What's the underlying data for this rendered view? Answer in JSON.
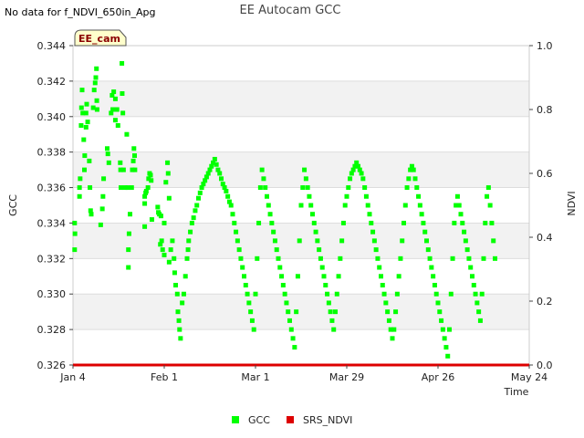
{
  "chart_data": {
    "type": "scatter",
    "title": "EE Autocam GCC",
    "note": "No data for f_NDVI_650in_Apg",
    "site_label": "EE_cam",
    "xlabel": "Time",
    "ylabel": "GCC",
    "y2label": "NDVI",
    "x_range_days": [
      0,
      140
    ],
    "x_ticks": [
      {
        "label": "Jan 4",
        "day": 0
      },
      {
        "label": "Feb 1",
        "day": 28
      },
      {
        "label": "Mar 1",
        "day": 56
      },
      {
        "label": "Mar 29",
        "day": 84
      },
      {
        "label": "Apr 26",
        "day": 112
      },
      {
        "label": "May 24",
        "day": 140
      }
    ],
    "ylim": [
      0.326,
      0.344
    ],
    "y_ticks": [
      "0.326",
      "0.328",
      "0.330",
      "0.332",
      "0.334",
      "0.336",
      "0.338",
      "0.340",
      "0.342",
      "0.344"
    ],
    "y2lim": [
      0.0,
      1.0
    ],
    "y2_ticks": [
      "0.0",
      "0.2",
      "0.4",
      "0.6",
      "0.8",
      "1.0"
    ],
    "grid": true,
    "legend": [
      {
        "name": "GCC",
        "color": "#00ff00"
      },
      {
        "name": "SRS_NDVI",
        "color": "#dd0000"
      }
    ],
    "series": [
      {
        "name": "GCC",
        "color": "#00ff00",
        "points": [
          [
            0.5,
            0.3325
          ],
          [
            0.5,
            0.334
          ],
          [
            0.6,
            0.3334
          ],
          [
            2.0,
            0.3355
          ],
          [
            2.0,
            0.336
          ],
          [
            2.2,
            0.3365
          ],
          [
            2.5,
            0.3395
          ],
          [
            2.6,
            0.3405
          ],
          [
            2.8,
            0.3415
          ],
          [
            3.0,
            0.3402
          ],
          [
            3.3,
            0.3387
          ],
          [
            3.5,
            0.337
          ],
          [
            3.6,
            0.3378
          ],
          [
            4.0,
            0.3394
          ],
          [
            4.0,
            0.3402
          ],
          [
            4.2,
            0.3407
          ],
          [
            4.5,
            0.3397
          ],
          [
            5.0,
            0.3375
          ],
          [
            5.2,
            0.336
          ],
          [
            5.4,
            0.3347
          ],
          [
            5.6,
            0.3345
          ],
          [
            6.2,
            0.3405
          ],
          [
            6.5,
            0.3415
          ],
          [
            6.8,
            0.3419
          ],
          [
            7.0,
            0.3422
          ],
          [
            7.2,
            0.3427
          ],
          [
            7.3,
            0.3409
          ],
          [
            7.4,
            0.3404
          ],
          [
            8.5,
            0.3339
          ],
          [
            9.0,
            0.3348
          ],
          [
            9.2,
            0.3355
          ],
          [
            9.4,
            0.3365
          ],
          [
            10.5,
            0.3382
          ],
          [
            10.7,
            0.3379
          ],
          [
            11.0,
            0.3374
          ],
          [
            11.7,
            0.3402
          ],
          [
            12.0,
            0.3412
          ],
          [
            12.2,
            0.3404
          ],
          [
            12.5,
            0.3414
          ],
          [
            13.0,
            0.341
          ],
          [
            13.0,
            0.3398
          ],
          [
            13.5,
            0.3404
          ],
          [
            13.8,
            0.3395
          ],
          [
            14.5,
            0.3374
          ],
          [
            14.6,
            0.337
          ],
          [
            14.7,
            0.336
          ],
          [
            15.0,
            0.343
          ],
          [
            15.1,
            0.3413
          ],
          [
            15.3,
            0.3402
          ],
          [
            15.5,
            0.337
          ],
          [
            16.0,
            0.336
          ],
          [
            16.5,
            0.339
          ],
          [
            16.8,
            0.336
          ],
          [
            17.0,
            0.3325
          ],
          [
            17.0,
            0.3315
          ],
          [
            17.2,
            0.3334
          ],
          [
            17.5,
            0.3345
          ],
          [
            18.0,
            0.336
          ],
          [
            18.2,
            0.337
          ],
          [
            18.5,
            0.3375
          ],
          [
            18.7,
            0.3382
          ],
          [
            18.9,
            0.3378
          ],
          [
            19.0,
            0.337
          ],
          [
            22.0,
            0.3338
          ],
          [
            22.0,
            0.3351
          ],
          [
            22.0,
            0.3355
          ],
          [
            22.3,
            0.3357
          ],
          [
            22.5,
            0.3358
          ],
          [
            23.0,
            0.336
          ],
          [
            23.2,
            0.3365
          ],
          [
            23.5,
            0.3368
          ],
          [
            23.8,
            0.3367
          ],
          [
            24.0,
            0.3364
          ],
          [
            24.2,
            0.3342
          ],
          [
            26.0,
            0.3349
          ],
          [
            26.2,
            0.3346
          ],
          [
            26.5,
            0.3345
          ],
          [
            27.0,
            0.3344
          ],
          [
            28.0,
            0.334
          ],
          [
            28.5,
            0.3363
          ],
          [
            29.0,
            0.3374
          ],
          [
            29.2,
            0.3368
          ],
          [
            29.5,
            0.3354
          ],
          [
            26.8,
            0.3328
          ],
          [
            27.2,
            0.333
          ],
          [
            27.5,
            0.3325
          ],
          [
            28.0,
            0.3322
          ],
          [
            29.5,
            0.3318
          ],
          [
            30.0,
            0.3325
          ],
          [
            30.5,
            0.333
          ],
          [
            31.0,
            0.332
          ],
          [
            31.2,
            0.3312
          ],
          [
            31.5,
            0.3305
          ],
          [
            32.0,
            0.33
          ],
          [
            32.2,
            0.329
          ],
          [
            32.5,
            0.3285
          ],
          [
            32.7,
            0.328
          ],
          [
            33.0,
            0.3275
          ],
          [
            33.5,
            0.3295
          ],
          [
            34.0,
            0.33
          ],
          [
            34.5,
            0.331
          ],
          [
            35.0,
            0.332
          ],
          [
            35.3,
            0.3325
          ],
          [
            35.5,
            0.333
          ],
          [
            36.0,
            0.3335
          ],
          [
            36.5,
            0.334
          ],
          [
            37.0,
            0.3343
          ],
          [
            37.5,
            0.3347
          ],
          [
            38.0,
            0.335
          ],
          [
            38.5,
            0.3354
          ],
          [
            39.0,
            0.3357
          ],
          [
            39.5,
            0.336
          ],
          [
            40.0,
            0.3362
          ],
          [
            40.5,
            0.3364
          ],
          [
            41.0,
            0.3366
          ],
          [
            41.5,
            0.3368
          ],
          [
            42.0,
            0.337
          ],
          [
            42.5,
            0.3372
          ],
          [
            43.0,
            0.3374
          ],
          [
            43.5,
            0.3376
          ],
          [
            44.0,
            0.3373
          ],
          [
            44.5,
            0.337
          ],
          [
            45.0,
            0.3368
          ],
          [
            45.5,
            0.3365
          ],
          [
            46.0,
            0.3362
          ],
          [
            46.5,
            0.336
          ],
          [
            47.0,
            0.3358
          ],
          [
            47.5,
            0.3355
          ],
          [
            48.0,
            0.3352
          ],
          [
            48.5,
            0.335
          ],
          [
            49.0,
            0.3345
          ],
          [
            49.5,
            0.334
          ],
          [
            50.0,
            0.3335
          ],
          [
            50.5,
            0.333
          ],
          [
            51.0,
            0.3325
          ],
          [
            51.5,
            0.332
          ],
          [
            52.0,
            0.3315
          ],
          [
            52.5,
            0.331
          ],
          [
            53.0,
            0.3305
          ],
          [
            53.5,
            0.33
          ],
          [
            54.0,
            0.3295
          ],
          [
            54.5,
            0.329
          ],
          [
            55.0,
            0.3285
          ],
          [
            55.5,
            0.328
          ],
          [
            56.0,
            0.33
          ],
          [
            56.5,
            0.332
          ],
          [
            57.0,
            0.334
          ],
          [
            57.5,
            0.336
          ],
          [
            58.0,
            0.337
          ],
          [
            58.5,
            0.3365
          ],
          [
            59.0,
            0.336
          ],
          [
            59.5,
            0.3355
          ],
          [
            60.0,
            0.335
          ],
          [
            60.5,
            0.3345
          ],
          [
            61.0,
            0.334
          ],
          [
            61.5,
            0.3335
          ],
          [
            62.0,
            0.333
          ],
          [
            62.5,
            0.3325
          ],
          [
            63.0,
            0.332
          ],
          [
            63.5,
            0.3315
          ],
          [
            64.0,
            0.331
          ],
          [
            64.5,
            0.3305
          ],
          [
            65.0,
            0.33
          ],
          [
            65.5,
            0.3295
          ],
          [
            66.0,
            0.329
          ],
          [
            66.5,
            0.3285
          ],
          [
            67.0,
            0.328
          ],
          [
            67.5,
            0.3275
          ],
          [
            68.0,
            0.327
          ],
          [
            68.5,
            0.329
          ],
          [
            69.0,
            0.331
          ],
          [
            69.5,
            0.333
          ],
          [
            70.0,
            0.335
          ],
          [
            70.5,
            0.336
          ],
          [
            71.0,
            0.337
          ],
          [
            71.5,
            0.3365
          ],
          [
            72.0,
            0.336
          ],
          [
            72.5,
            0.3355
          ],
          [
            73.0,
            0.335
          ],
          [
            73.5,
            0.3345
          ],
          [
            74.0,
            0.334
          ],
          [
            74.5,
            0.3335
          ],
          [
            75.0,
            0.333
          ],
          [
            75.5,
            0.3325
          ],
          [
            76.0,
            0.332
          ],
          [
            76.5,
            0.3315
          ],
          [
            77.0,
            0.331
          ],
          [
            77.5,
            0.3305
          ],
          [
            78.0,
            0.33
          ],
          [
            78.5,
            0.3295
          ],
          [
            79.0,
            0.329
          ],
          [
            79.5,
            0.3285
          ],
          [
            80.0,
            0.328
          ],
          [
            80.5,
            0.329
          ],
          [
            81.0,
            0.33
          ],
          [
            81.5,
            0.331
          ],
          [
            82.0,
            0.332
          ],
          [
            82.5,
            0.333
          ],
          [
            83.0,
            0.334
          ],
          [
            83.5,
            0.335
          ],
          [
            84.0,
            0.3355
          ],
          [
            84.5,
            0.336
          ],
          [
            85.0,
            0.3365
          ],
          [
            85.5,
            0.3368
          ],
          [
            86.0,
            0.337
          ],
          [
            86.5,
            0.3372
          ],
          [
            87.0,
            0.3374
          ],
          [
            87.5,
            0.3372
          ],
          [
            88.0,
            0.337
          ],
          [
            88.5,
            0.3368
          ],
          [
            89.0,
            0.3365
          ],
          [
            89.5,
            0.336
          ],
          [
            90.0,
            0.3355
          ],
          [
            90.5,
            0.335
          ],
          [
            91.0,
            0.3345
          ],
          [
            91.5,
            0.334
          ],
          [
            92.0,
            0.3335
          ],
          [
            92.5,
            0.333
          ],
          [
            93.0,
            0.3325
          ],
          [
            93.5,
            0.332
          ],
          [
            94.0,
            0.3315
          ],
          [
            94.5,
            0.331
          ],
          [
            95.0,
            0.3305
          ],
          [
            95.5,
            0.33
          ],
          [
            96.0,
            0.3295
          ],
          [
            96.5,
            0.329
          ],
          [
            97.0,
            0.3285
          ],
          [
            97.5,
            0.328
          ],
          [
            98.0,
            0.3275
          ],
          [
            98.5,
            0.328
          ],
          [
            99.0,
            0.329
          ],
          [
            99.5,
            0.33
          ],
          [
            100.0,
            0.331
          ],
          [
            100.5,
            0.332
          ],
          [
            101.0,
            0.333
          ],
          [
            101.5,
            0.334
          ],
          [
            102.0,
            0.335
          ],
          [
            102.5,
            0.336
          ],
          [
            103.0,
            0.3365
          ],
          [
            103.5,
            0.337
          ],
          [
            104.0,
            0.3372
          ],
          [
            104.5,
            0.337
          ],
          [
            105.0,
            0.3365
          ],
          [
            105.5,
            0.336
          ],
          [
            106.0,
            0.3355
          ],
          [
            106.5,
            0.335
          ],
          [
            107.0,
            0.3345
          ],
          [
            107.5,
            0.334
          ],
          [
            108.0,
            0.3335
          ],
          [
            108.5,
            0.333
          ],
          [
            109.0,
            0.3325
          ],
          [
            109.5,
            0.332
          ],
          [
            110.0,
            0.3315
          ],
          [
            110.5,
            0.331
          ],
          [
            111.0,
            0.3305
          ],
          [
            111.5,
            0.33
          ],
          [
            112.0,
            0.3295
          ],
          [
            112.5,
            0.329
          ],
          [
            113.0,
            0.3285
          ],
          [
            113.5,
            0.328
          ],
          [
            114.0,
            0.3275
          ],
          [
            114.5,
            0.327
          ],
          [
            115.0,
            0.3265
          ],
          [
            115.5,
            0.328
          ],
          [
            116.0,
            0.33
          ],
          [
            116.5,
            0.332
          ],
          [
            117.0,
            0.334
          ],
          [
            117.5,
            0.335
          ],
          [
            118.0,
            0.3355
          ],
          [
            118.5,
            0.335
          ],
          [
            119.0,
            0.3345
          ],
          [
            119.5,
            0.334
          ],
          [
            120.0,
            0.3335
          ],
          [
            120.5,
            0.333
          ],
          [
            121.0,
            0.3325
          ],
          [
            121.5,
            0.332
          ],
          [
            122.0,
            0.3315
          ],
          [
            122.5,
            0.331
          ],
          [
            123.0,
            0.3305
          ],
          [
            123.5,
            0.33
          ],
          [
            124.0,
            0.3295
          ],
          [
            124.5,
            0.329
          ],
          [
            125.0,
            0.3285
          ],
          [
            125.5,
            0.33
          ],
          [
            126.0,
            0.332
          ],
          [
            126.5,
            0.334
          ],
          [
            127.0,
            0.3355
          ],
          [
            127.5,
            0.336
          ],
          [
            128.0,
            0.335
          ],
          [
            128.5,
            0.334
          ],
          [
            129.0,
            0.333
          ],
          [
            129.5,
            0.332
          ]
        ]
      },
      {
        "name": "SRS_NDVI",
        "color": "#dd0000",
        "points": [
          [
            0,
            0.0
          ],
          [
            140,
            0.0
          ]
        ]
      }
    ]
  }
}
